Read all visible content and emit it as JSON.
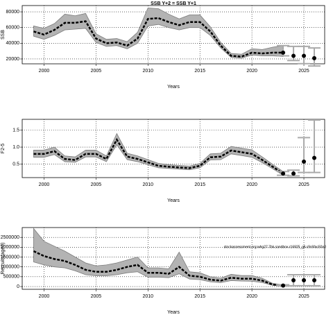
{
  "chart_data": [
    {
      "type": "line",
      "title": "SSB Y+2 = SSB Y+1",
      "xlabel": "Years",
      "ylabel": "SSB",
      "xlim": [
        1997.9,
        2027
      ],
      "xticks": [
        2000,
        2005,
        2010,
        2015,
        2020,
        2025
      ],
      "ylim": [
        13800,
        88000
      ],
      "yticks": [
        20000,
        40000,
        60000,
        80000
      ],
      "grid": true,
      "x": [
        1999,
        2000,
        2001,
        2002,
        2003,
        2004,
        2005,
        2006,
        2007,
        2008,
        2009,
        2010,
        2011,
        2012,
        2013,
        2014,
        2015,
        2016,
        2017,
        2018,
        2019,
        2020,
        2021,
        2022,
        2023
      ],
      "values": [
        55000,
        51000,
        57000,
        66000,
        66000,
        68000,
        46000,
        40000,
        41000,
        37000,
        46000,
        71000,
        72000,
        67000,
        63000,
        67000,
        67000,
        55000,
        37000,
        24000,
        23000,
        28000,
        27000,
        28000,
        28000
      ],
      "lower": [
        49000,
        45000,
        50000,
        57000,
        58000,
        59000,
        41000,
        36000,
        37000,
        33000,
        40000,
        62000,
        64000,
        60000,
        57000,
        60000,
        60000,
        50000,
        34000,
        22000,
        21000,
        25000,
        24000,
        24000,
        23000
      ],
      "upper": [
        62000,
        59000,
        65000,
        77000,
        75000,
        78000,
        52000,
        45000,
        46000,
        42000,
        54000,
        85000,
        84000,
        77000,
        71000,
        76000,
        76000,
        61000,
        41000,
        27000,
        26000,
        33000,
        32000,
        35000,
        37000
      ],
      "projection": {
        "x": [
          2023,
          2024,
          2025,
          2026
        ],
        "values": [
          28000,
          24000,
          24000,
          21000
        ],
        "lower": [
          24000,
          18000,
          14000,
          11000
        ],
        "upper": [
          37000,
          36000,
          36000,
          34000
        ]
      }
    },
    {
      "type": "line",
      "xlabel": "Years",
      "ylabel": "F2-5",
      "xlim": [
        1997.9,
        2027
      ],
      "xticks": [
        2000,
        2005,
        2010,
        2015,
        2020,
        2025
      ],
      "ylim": [
        0.1,
        1.82
      ],
      "yticks": [
        0.5,
        {
          "value": 1,
          "label": "1.0"
        },
        1.5
      ],
      "grid": true,
      "x": [
        1999,
        2000,
        2001,
        2002,
        2003,
        2004,
        2005,
        2006,
        2007,
        2008,
        2009,
        2010,
        2011,
        2012,
        2013,
        2014,
        2015,
        2016,
        2017,
        2018,
        2019,
        2020,
        2021,
        2022,
        2023
      ],
      "values": [
        0.8,
        0.8,
        0.88,
        0.65,
        0.62,
        0.8,
        0.8,
        0.65,
        1.22,
        0.72,
        0.65,
        0.55,
        0.45,
        0.42,
        0.4,
        0.38,
        0.45,
        0.7,
        0.72,
        0.9,
        0.85,
        0.8,
        0.62,
        0.42,
        0.22
      ],
      "lower": [
        0.7,
        0.7,
        0.78,
        0.57,
        0.55,
        0.71,
        0.71,
        0.57,
        1.07,
        0.63,
        0.57,
        0.48,
        0.39,
        0.37,
        0.35,
        0.33,
        0.39,
        0.62,
        0.63,
        0.8,
        0.75,
        0.7,
        0.54,
        0.36,
        0.17
      ],
      "upper": [
        0.91,
        0.91,
        1.0,
        0.74,
        0.71,
        0.91,
        0.91,
        0.74,
        1.4,
        0.82,
        0.74,
        0.63,
        0.52,
        0.48,
        0.46,
        0.44,
        0.52,
        0.8,
        0.82,
        1.02,
        0.97,
        0.92,
        0.71,
        0.49,
        0.28
      ],
      "projection": {
        "x": [
          2023,
          2024,
          2025,
          2026
        ],
        "values": [
          0.22,
          0.22,
          0.57,
          0.68
        ],
        "lower": [
          0.17,
          0.15,
          0.25,
          0.25
        ],
        "upper": [
          0.28,
          0.32,
          1.28,
          1.8
        ]
      }
    },
    {
      "type": "line",
      "xlabel": "Years",
      "ylabel": "Recruits(age0)",
      "annotation": "stockassessment.org:whg27.7bk.sandbox.r16925_gll.c9c6fac50a0",
      "xlim": [
        1997.9,
        2027
      ],
      "xticks": [
        2000,
        2005,
        2010,
        2015,
        2020,
        2025
      ],
      "ylim": [
        -140000,
        3000000
      ],
      "yticks": [
        0,
        500000,
        1000000,
        1500000,
        2000000,
        2500000
      ],
      "grid": true,
      "x": [
        1999,
        2000,
        2001,
        2002,
        2003,
        2004,
        2005,
        2006,
        2007,
        2008,
        2009,
        2010,
        2011,
        2012,
        2013,
        2014,
        2015,
        2016,
        2017,
        2018,
        2019,
        2020,
        2021,
        2022,
        2023
      ],
      "values": [
        1800000,
        1550000,
        1400000,
        1300000,
        1100000,
        850000,
        750000,
        750000,
        850000,
        1000000,
        1100000,
        700000,
        700000,
        650000,
        1000000,
        550000,
        500000,
        350000,
        300000,
        450000,
        400000,
        400000,
        300000,
        100000,
        50000
      ],
      "lower": [
        1250000,
        1100000,
        1000000,
        950000,
        800000,
        600000,
        550000,
        550000,
        600000,
        700000,
        750000,
        480000,
        480000,
        450000,
        650000,
        380000,
        350000,
        240000,
        200000,
        300000,
        280000,
        270000,
        200000,
        60000,
        30000
      ],
      "upper": [
        2950000,
        2300000,
        2050000,
        1800000,
        1500000,
        1200000,
        1050000,
        1100000,
        1200000,
        1350000,
        1500000,
        950000,
        950000,
        900000,
        1750000,
        750000,
        700000,
        500000,
        430000,
        620000,
        560000,
        560000,
        420000,
        160000,
        90000
      ],
      "projection": {
        "x": [
          2023,
          2024,
          2025,
          2026
        ],
        "values": [
          50000,
          320000,
          320000,
          320000
        ],
        "lower": [
          30000,
          40000,
          40000,
          40000
        ],
        "upper": [
          90000,
          600000,
          600000,
          600000
        ]
      }
    }
  ]
}
